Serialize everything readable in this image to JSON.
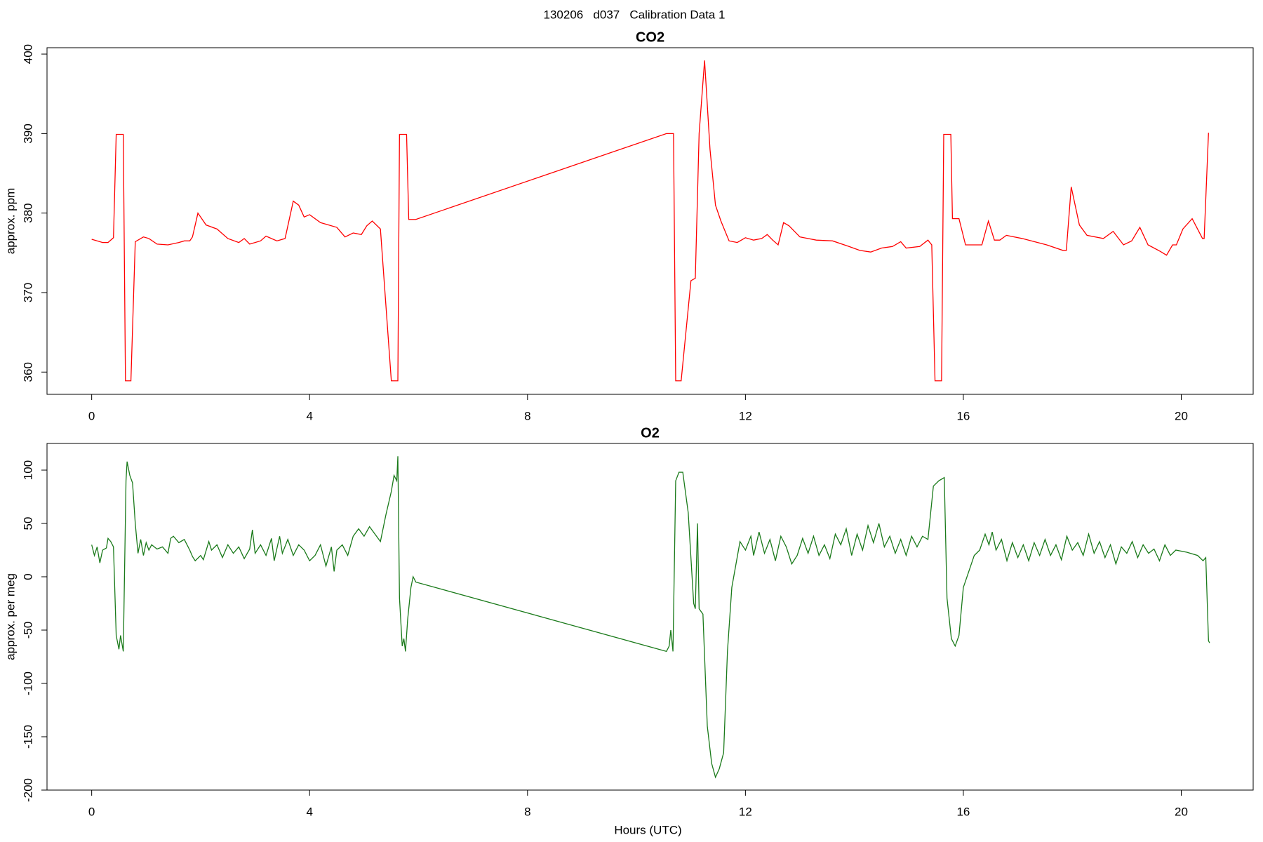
{
  "title": "130206   d037   Calibration Data 1",
  "chart_data": [
    {
      "type": "line",
      "title": "CO2",
      "ylabel": "approx. ppm",
      "color": "#ff0000",
      "xlim": [
        -0.82,
        21.32
      ],
      "xticks": [
        0,
        4,
        8,
        12,
        16,
        20
      ],
      "ylim": [
        357.2,
        400.8
      ],
      "yticks": [
        360,
        370,
        380,
        390,
        400
      ],
      "x": [
        0,
        0.2,
        0.3,
        0.4,
        0.45,
        0.58,
        0.62,
        0.72,
        0.8,
        0.95,
        1.05,
        1.2,
        1.4,
        1.6,
        1.7,
        1.8,
        1.85,
        1.95,
        2.1,
        2.3,
        2.5,
        2.7,
        2.8,
        2.9,
        3.1,
        3.2,
        3.4,
        3.55,
        3.7,
        3.8,
        3.9,
        4.0,
        4.2,
        4.5,
        4.65,
        4.8,
        4.95,
        5.05,
        5.15,
        5.3,
        5.5,
        5.62,
        5.65,
        5.78,
        5.82,
        5.95,
        10.55,
        10.68,
        10.72,
        10.82,
        11.0,
        11.08,
        11.15,
        11.25,
        11.35,
        11.45,
        11.55,
        11.7,
        11.85,
        12.0,
        12.15,
        12.3,
        12.4,
        12.5,
        12.6,
        12.7,
        12.8,
        13.0,
        13.3,
        13.6,
        13.9,
        14.1,
        14.3,
        14.5,
        14.7,
        14.85,
        14.95,
        15.2,
        15.35,
        15.42,
        15.48,
        15.6,
        15.64,
        15.77,
        15.8,
        15.92,
        16.04,
        16.34,
        16.46,
        16.57,
        16.67,
        16.79,
        17.08,
        17.53,
        17.83,
        17.89,
        17.98,
        18.13,
        18.27,
        18.57,
        18.75,
        18.94,
        19.09,
        19.24,
        19.39,
        19.61,
        19.73,
        19.84,
        19.91,
        20.03,
        20.2,
        20.39,
        20.42,
        20.5
      ],
      "values": [
        376.7,
        376.3,
        376.3,
        376.9,
        389.9,
        389.9,
        358.9,
        358.9,
        376.4,
        377,
        376.8,
        376.1,
        376,
        376.3,
        376.5,
        376.5,
        377,
        380,
        378.5,
        378,
        376.8,
        376.3,
        376.8,
        376.1,
        376.5,
        377.1,
        376.5,
        376.8,
        381.5,
        381,
        379.5,
        379.8,
        378.8,
        378.2,
        377,
        377.5,
        377.3,
        378.4,
        379,
        378,
        358.9,
        358.9,
        389.9,
        389.9,
        379.2,
        379.2,
        390,
        390,
        358.9,
        358.9,
        371.5,
        371.8,
        390,
        399.2,
        388,
        381,
        379,
        376.5,
        376.3,
        376.9,
        376.6,
        376.8,
        377.3,
        376.6,
        376,
        378.8,
        378.4,
        377,
        376.6,
        376.5,
        375.8,
        375.3,
        375.1,
        375.6,
        375.8,
        376.4,
        375.6,
        375.8,
        376.6,
        376,
        358.9,
        358.9,
        389.9,
        389.9,
        379.3,
        379.3,
        376,
        376,
        379,
        376.6,
        376.6,
        377.2,
        376.8,
        376,
        375.3,
        375.3,
        383.3,
        378.5,
        377.2,
        376.8,
        377.7,
        376,
        376.5,
        378.2,
        376,
        375.2,
        374.7,
        376,
        376,
        378,
        379.3,
        376.8,
        376.8,
        390.1
      ]
    },
    {
      "type": "line",
      "title": "O2",
      "ylabel": "approx. per meg",
      "xlabel": "Hours (UTC)",
      "color": "#1a7a1a",
      "xlim": [
        -0.82,
        21.32
      ],
      "xticks": [
        0,
        4,
        8,
        12,
        16,
        20
      ],
      "ylim": [
        -200,
        125
      ],
      "yticks": [
        -200,
        -150,
        -100,
        -50,
        0,
        50,
        100
      ],
      "x": [
        0,
        0.05,
        0.1,
        0.15,
        0.2,
        0.27,
        0.3,
        0.35,
        0.4,
        0.45,
        0.5,
        0.53,
        0.58,
        0.63,
        0.65,
        0.7,
        0.75,
        0.8,
        0.85,
        0.9,
        0.95,
        1.0,
        1.05,
        1.1,
        1.2,
        1.3,
        1.4,
        1.45,
        1.5,
        1.6,
        1.7,
        1.8,
        1.85,
        1.9,
        2.0,
        2.05,
        2.15,
        2.2,
        2.3,
        2.4,
        2.5,
        2.6,
        2.7,
        2.8,
        2.9,
        2.95,
        3.0,
        3.1,
        3.2,
        3.3,
        3.35,
        3.45,
        3.5,
        3.6,
        3.7,
        3.8,
        3.9,
        4.0,
        4.1,
        4.2,
        4.3,
        4.4,
        4.45,
        4.5,
        4.6,
        4.7,
        4.8,
        4.9,
        5.0,
        5.1,
        5.2,
        5.3,
        5.4,
        5.5,
        5.55,
        5.6,
        5.62,
        5.65,
        5.7,
        5.73,
        5.76,
        5.8,
        5.83,
        5.86,
        5.9,
        5.95,
        10.55,
        10.6,
        10.63,
        10.67,
        10.72,
        10.78,
        10.85,
        10.95,
        11.05,
        11.08,
        11.12,
        11.15,
        11.22,
        11.3,
        11.38,
        11.45,
        11.52,
        11.6,
        11.67,
        11.75,
        11.82,
        11.9,
        12.0,
        12.1,
        12.15,
        12.25,
        12.35,
        12.45,
        12.55,
        12.65,
        12.75,
        12.85,
        12.95,
        13.05,
        13.15,
        13.25,
        13.35,
        13.45,
        13.55,
        13.65,
        13.75,
        13.85,
        13.95,
        14.05,
        14.15,
        14.25,
        14.35,
        14.45,
        14.55,
        14.65,
        14.75,
        14.85,
        14.95,
        15.05,
        15.15,
        15.25,
        15.35,
        15.45,
        15.55,
        15.65,
        15.7,
        15.78,
        15.85,
        15.92,
        16.0,
        16.1,
        16.2,
        16.3,
        16.4,
        16.47,
        16.53,
        16.6,
        16.7,
        16.8,
        16.9,
        17.0,
        17.1,
        17.2,
        17.3,
        17.4,
        17.5,
        17.6,
        17.7,
        17.8,
        17.9,
        18.0,
        18.1,
        18.2,
        18.3,
        18.4,
        18.5,
        18.6,
        18.7,
        18.8,
        18.9,
        19.0,
        19.1,
        19.2,
        19.3,
        19.4,
        19.5,
        19.6,
        19.7,
        19.8,
        19.9,
        20.1,
        20.3,
        20.4,
        20.45,
        20.5,
        20.52
      ],
      "values": [
        30,
        20,
        28,
        13,
        25,
        27,
        36,
        33,
        28,
        -55,
        -68,
        -55,
        -70,
        90,
        108,
        95,
        88,
        50,
        22,
        35,
        20,
        32,
        25,
        30,
        26,
        28,
        22,
        36,
        38,
        32,
        35,
        25,
        19,
        15,
        20,
        16,
        33,
        25,
        30,
        18,
        30,
        22,
        28,
        17,
        26,
        44,
        22,
        30,
        20,
        36,
        15,
        38,
        22,
        35,
        20,
        30,
        25,
        15,
        20,
        30,
        10,
        28,
        5,
        25,
        30,
        20,
        38,
        45,
        38,
        47,
        40,
        33,
        58,
        80,
        95,
        90,
        113,
        -20,
        -65,
        -58,
        -70,
        -40,
        -25,
        -10,
        0,
        -5,
        -70,
        -65,
        -50,
        -70,
        90,
        98,
        98,
        60,
        -25,
        -30,
        50,
        -30,
        -35,
        -140,
        -175,
        -188,
        -180,
        -165,
        -70,
        -10,
        10,
        33,
        25,
        38,
        20,
        42,
        22,
        35,
        15,
        38,
        28,
        12,
        20,
        36,
        22,
        38,
        20,
        30,
        17,
        40,
        30,
        45,
        20,
        40,
        25,
        48,
        32,
        50,
        28,
        38,
        22,
        35,
        20,
        38,
        28,
        38,
        35,
        85,
        90,
        93,
        -20,
        -58,
        -65,
        -55,
        -10,
        5,
        20,
        25,
        40,
        30,
        42,
        25,
        35,
        15,
        32,
        18,
        30,
        15,
        32,
        20,
        35,
        20,
        30,
        16,
        38,
        25,
        32,
        20,
        40,
        22,
        33,
        18,
        30,
        12,
        28,
        22,
        33,
        18,
        30,
        22,
        26,
        15,
        30,
        20,
        25,
        23,
        20,
        15,
        18,
        -60,
        -62
      ]
    }
  ]
}
